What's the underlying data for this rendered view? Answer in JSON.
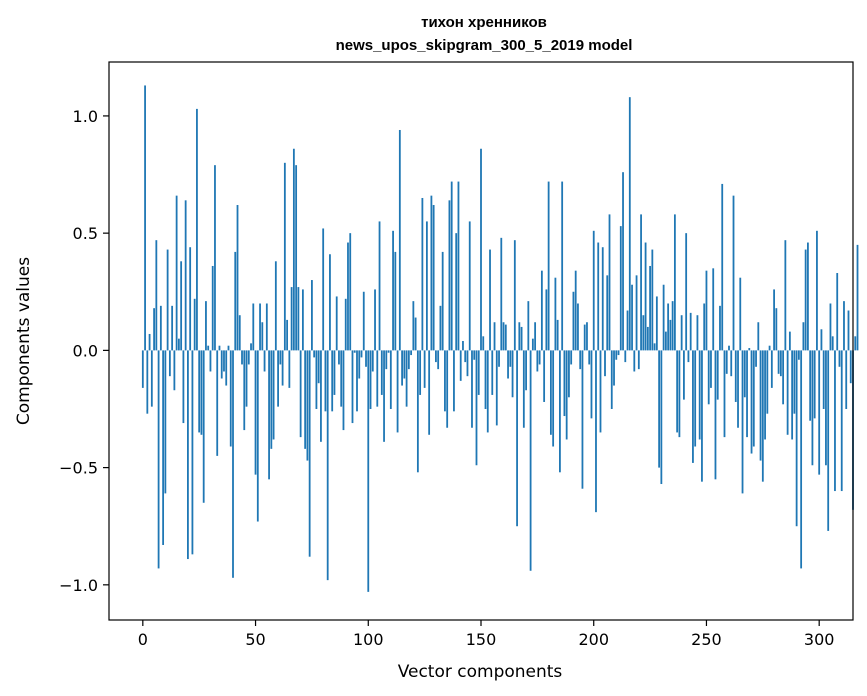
{
  "chart_data": {
    "type": "bar",
    "title_line1": "тихон хренников",
    "title_line2": "news_upos_skipgram_300_5_2019 model",
    "xlabel": "Vector components",
    "ylabel": "Components values",
    "xlim": [
      -15,
      315
    ],
    "ylim": [
      -1.15,
      1.23
    ],
    "xticks": [
      0,
      50,
      100,
      150,
      200,
      250,
      300
    ],
    "xtick_labels": [
      "0",
      "50",
      "100",
      "150",
      "200",
      "250",
      "300"
    ],
    "yticks": [
      -1.0,
      -0.5,
      0.0,
      0.5,
      1.0
    ],
    "ytick_labels": [
      "−1.0",
      "−0.5",
      "0.0",
      "0.5",
      "1.0"
    ],
    "bar_color": "#1f77b4",
    "grid": false,
    "legend": "none",
    "values": [
      -0.16,
      1.13,
      -0.27,
      0.07,
      -0.24,
      0.18,
      0.47,
      -0.93,
      0.19,
      -0.83,
      -0.61,
      0.43,
      -0.11,
      0.19,
      -0.17,
      0.66,
      0.05,
      0.38,
      -0.31,
      0.64,
      -0.89,
      0.44,
      -0.87,
      0.22,
      1.03,
      -0.35,
      -0.36,
      -0.65,
      0.21,
      0.02,
      -0.09,
      0.36,
      0.79,
      -0.45,
      0.02,
      -0.12,
      -0.09,
      -0.15,
      0.02,
      -0.41,
      -0.97,
      0.42,
      0.62,
      0.15,
      -0.06,
      -0.34,
      -0.24,
      -0.06,
      0.03,
      0.2,
      -0.53,
      -0.73,
      0.2,
      0.12,
      -0.09,
      0.2,
      -0.55,
      -0.42,
      -0.38,
      0.38,
      -0.24,
      -0.06,
      -0.15,
      0.8,
      0.13,
      -0.16,
      0.27,
      0.86,
      0.79,
      0.27,
      -0.37,
      0.26,
      -0.42,
      -0.47,
      -0.88,
      0.3,
      -0.03,
      -0.25,
      -0.14,
      -0.39,
      0.52,
      -0.26,
      -0.98,
      0.41,
      -0.26,
      -0.19,
      0.23,
      -0.06,
      -0.24,
      -0.34,
      0.22,
      0.46,
      0.5,
      -0.31,
      -0.01,
      -0.26,
      -0.12,
      -0.03,
      0.25,
      -0.07,
      -1.03,
      -0.25,
      -0.09,
      0.26,
      -0.24,
      0.55,
      -0.19,
      -0.39,
      -0.08,
      -0.01,
      -0.25,
      0.51,
      0.42,
      -0.35,
      0.94,
      -0.15,
      -0.12,
      -0.24,
      -0.08,
      -0.02,
      0.21,
      0.14,
      -0.52,
      -0.19,
      0.65,
      -0.16,
      0.55,
      -0.36,
      0.66,
      0.62,
      -0.05,
      -0.08,
      0.19,
      0.42,
      -0.26,
      -0.33,
      0.64,
      0.72,
      -0.26,
      0.5,
      0.72,
      -0.13,
      0.04,
      -0.05,
      -0.11,
      0.55,
      -0.33,
      -0.04,
      -0.49,
      -0.19,
      0.86,
      0.06,
      -0.25,
      -0.35,
      0.43,
      -0.19,
      0.12,
      -0.32,
      -0.07,
      0.48,
      0.12,
      0.11,
      -0.12,
      -0.07,
      -0.2,
      0.47,
      -0.75,
      0.12,
      0.1,
      -0.33,
      -0.17,
      0.21,
      -0.94,
      0.05,
      0.12,
      -0.09,
      -0.06,
      0.34,
      -0.22,
      0.26,
      0.72,
      -0.36,
      -0.41,
      0.31,
      0.13,
      -0.52,
      0.72,
      -0.28,
      -0.38,
      -0.2,
      -0.06,
      0.25,
      0.34,
      0.2,
      -0.08,
      -0.59,
      0.11,
      0.12,
      -0.06,
      -0.29,
      0.51,
      -0.69,
      0.46,
      -0.35,
      0.44,
      -0.11,
      0.32,
      0.58,
      -0.25,
      -0.15,
      -0.04,
      -0.02,
      0.53,
      0.76,
      -0.05,
      0.17,
      1.08,
      0.28,
      -0.09,
      0.32,
      -0.08,
      0.58,
      0.15,
      0.46,
      0.1,
      0.36,
      0.43,
      0.03,
      0.23,
      -0.5,
      -0.57,
      0.28,
      0.08,
      0.2,
      0.13,
      0.21,
      0.58,
      -0.35,
      -0.37,
      0.15,
      -0.21,
      0.5,
      -0.05,
      0.16,
      -0.48,
      -0.41,
      0.15,
      -0.38,
      -0.56,
      0.2,
      0.34,
      -0.23,
      -0.16,
      0.35,
      -0.55,
      -0.21,
      0.19,
      0.71,
      -0.37,
      -0.1,
      0.02,
      -0.11,
      0.66,
      -0.22,
      -0.33,
      0.31,
      -0.61,
      -0.2,
      -0.37,
      0.01,
      -0.44,
      -0.41,
      -0.07,
      0.12,
      -0.47,
      -0.56,
      -0.38,
      -0.27,
      0.02,
      -0.16,
      0.26,
      0.18,
      -0.1,
      -0.11,
      -0.23,
      0.47,
      -0.36,
      0.08,
      -0.38,
      -0.27,
      -0.75,
      -0.04,
      -0.93,
      0.12,
      0.43,
      0.46,
      -0.3,
      -0.49,
      -0.29,
      0.51,
      -0.53,
      0.09,
      -0.25,
      -0.49,
      -0.77,
      0.2,
      0.06,
      -0.6,
      0.33,
      -0.07,
      -0.6,
      0.21,
      -0.25,
      0.17,
      -0.14,
      -0.68,
      0.06,
      0.45
    ]
  }
}
